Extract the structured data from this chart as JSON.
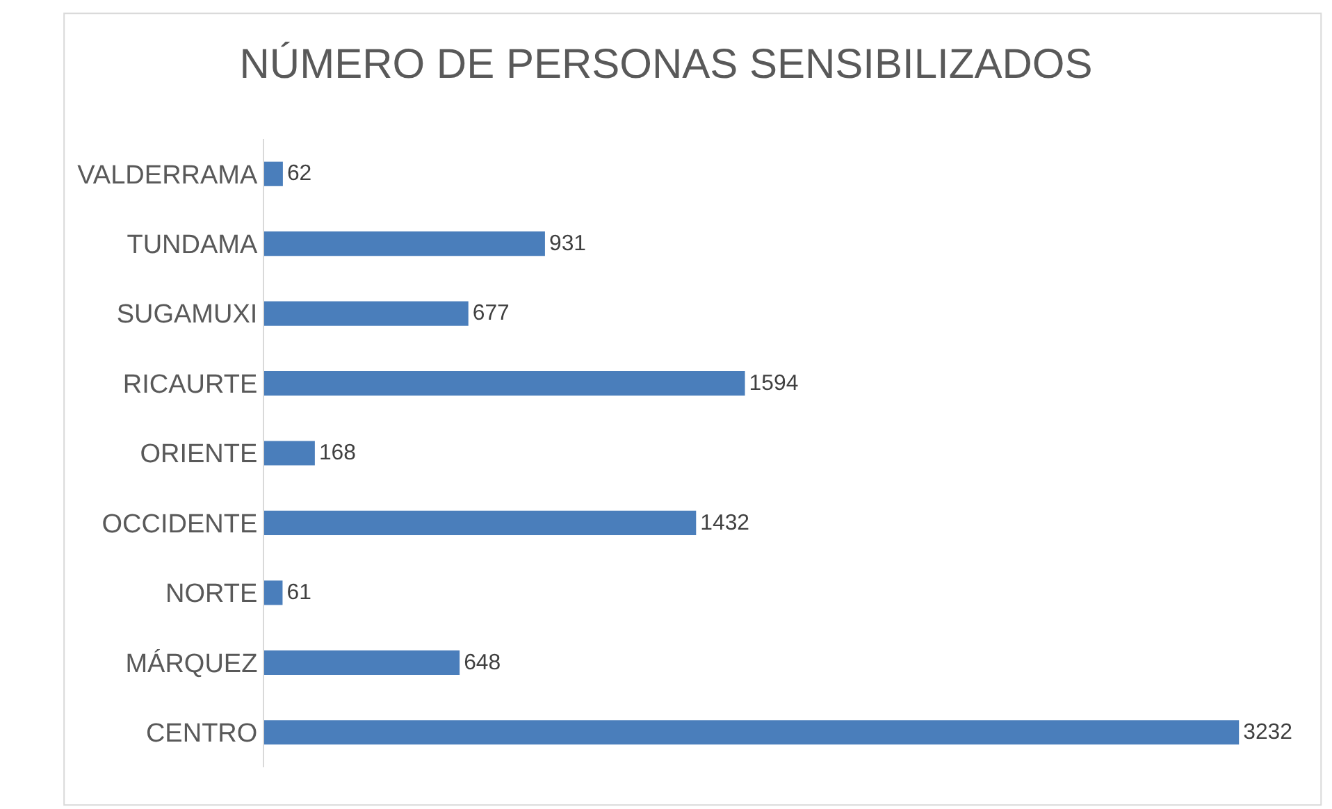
{
  "chart_data": {
    "type": "bar",
    "orientation": "horizontal",
    "title": "NÚMERO DE PERSONAS SENSIBILIZADOS",
    "categories": [
      "VALDERRAMA",
      "TUNDAMA",
      "SUGAMUXI",
      "RICAURTE",
      "ORIENTE",
      "OCCIDENTE",
      "NORTE",
      "MÁRQUEZ",
      "CENTRO"
    ],
    "values": [
      62,
      931,
      677,
      1594,
      168,
      1432,
      61,
      648,
      3232
    ],
    "color": "#4a7ebb",
    "data_labels": true,
    "tick_labels": "y"
  }
}
